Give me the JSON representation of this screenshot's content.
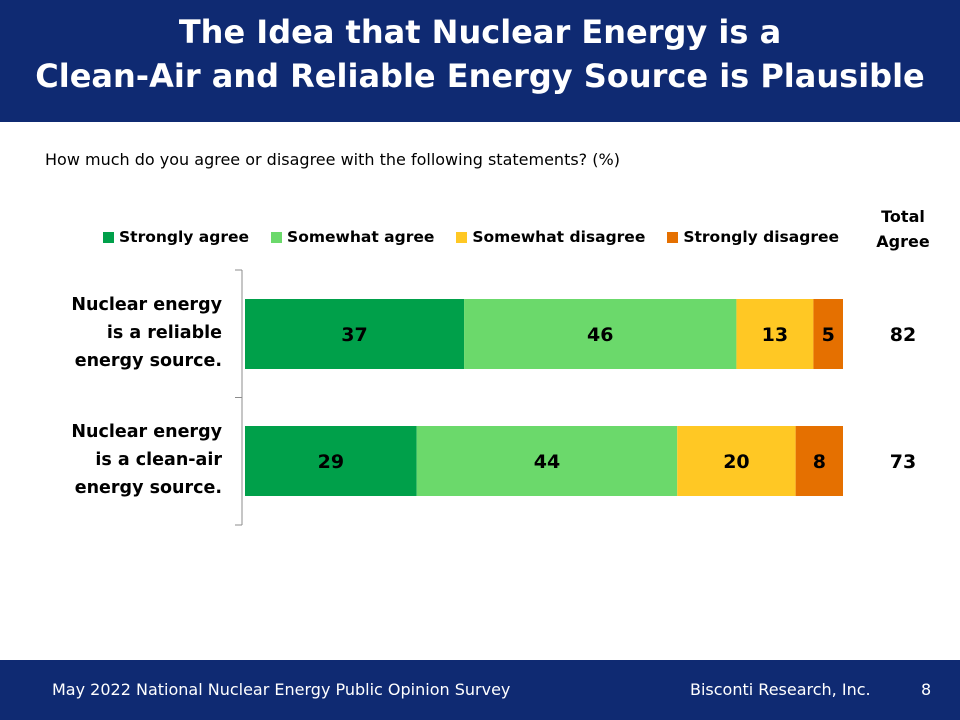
{
  "header": {
    "title_line1": "The Idea that Nuclear Energy is a",
    "title_line2": "Clean-Air and Reliable Energy Source is Plausible"
  },
  "question": "How much do you agree or disagree with the following statements? (%)",
  "total_header": {
    "line1": "Total",
    "line2": "Agree"
  },
  "footer": {
    "left": "May 2022 National Nuclear Energy Public Opinion Survey",
    "right": "Bisconti Research, Inc.",
    "page": "8"
  },
  "chart_data": {
    "type": "bar",
    "orientation": "horizontal",
    "stacked": true,
    "categories": [
      [
        "Nuclear energy",
        "is a reliable",
        "energy source."
      ],
      [
        "Nuclear energy",
        "is a clean-air",
        "energy source."
      ]
    ],
    "series": [
      {
        "name": "Strongly agree",
        "color": "#00a04a",
        "values": [
          37,
          29
        ]
      },
      {
        "name": "Somewhat agree",
        "color": "#6bd96b",
        "values": [
          46,
          44
        ]
      },
      {
        "name": "Somewhat disagree",
        "color": "#ffc824",
        "values": [
          13,
          20
        ]
      },
      {
        "name": "Strongly disagree",
        "color": "#e57000",
        "values": [
          5,
          8
        ]
      }
    ],
    "total_agree": [
      82,
      73
    ],
    "legend_position": "top",
    "grid": false
  }
}
